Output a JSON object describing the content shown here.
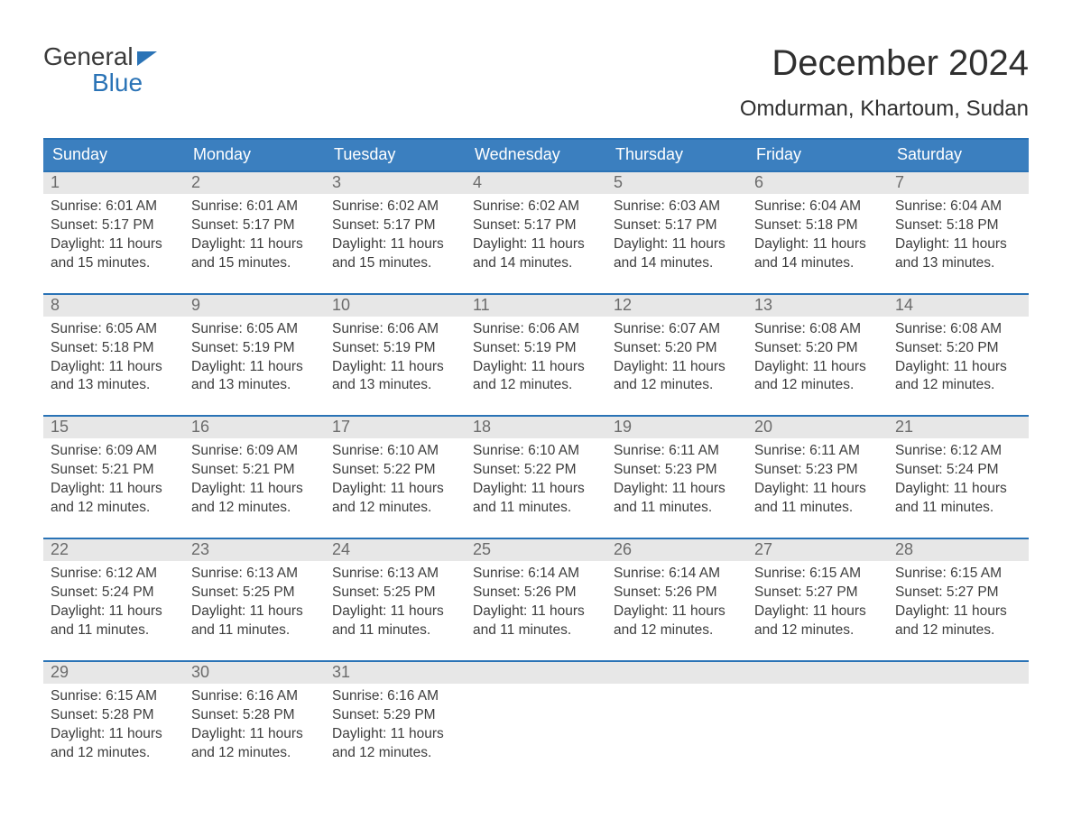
{
  "brand": {
    "line1": "General",
    "line2": "Blue",
    "accent_color": "#2a73b6"
  },
  "header": {
    "title": "December 2024",
    "location": "Omdurman, Khartoum, Sudan",
    "title_fontsize": 40,
    "subtitle_fontsize": 24
  },
  "calendar": {
    "type": "table",
    "header_bg": "#3b7fbf",
    "header_fg": "#ffffff",
    "week_separator_color": "#2a73b6",
    "daynum_bg": "#e7e7e7",
    "daynum_fg": "#6b6b6b",
    "body_text_color": "#3d3d3d",
    "body_fontsize": 15.5,
    "days_of_week": [
      "Sunday",
      "Monday",
      "Tuesday",
      "Wednesday",
      "Thursday",
      "Friday",
      "Saturday"
    ],
    "weeks": [
      [
        {
          "n": "1",
          "sunrise": "Sunrise: 6:01 AM",
          "sunset": "Sunset: 5:17 PM",
          "daylight": "Daylight: 11 hours and 15 minutes."
        },
        {
          "n": "2",
          "sunrise": "Sunrise: 6:01 AM",
          "sunset": "Sunset: 5:17 PM",
          "daylight": "Daylight: 11 hours and 15 minutes."
        },
        {
          "n": "3",
          "sunrise": "Sunrise: 6:02 AM",
          "sunset": "Sunset: 5:17 PM",
          "daylight": "Daylight: 11 hours and 15 minutes."
        },
        {
          "n": "4",
          "sunrise": "Sunrise: 6:02 AM",
          "sunset": "Sunset: 5:17 PM",
          "daylight": "Daylight: 11 hours and 14 minutes."
        },
        {
          "n": "5",
          "sunrise": "Sunrise: 6:03 AM",
          "sunset": "Sunset: 5:17 PM",
          "daylight": "Daylight: 11 hours and 14 minutes."
        },
        {
          "n": "6",
          "sunrise": "Sunrise: 6:04 AM",
          "sunset": "Sunset: 5:18 PM",
          "daylight": "Daylight: 11 hours and 14 minutes."
        },
        {
          "n": "7",
          "sunrise": "Sunrise: 6:04 AM",
          "sunset": "Sunset: 5:18 PM",
          "daylight": "Daylight: 11 hours and 13 minutes."
        }
      ],
      [
        {
          "n": "8",
          "sunrise": "Sunrise: 6:05 AM",
          "sunset": "Sunset: 5:18 PM",
          "daylight": "Daylight: 11 hours and 13 minutes."
        },
        {
          "n": "9",
          "sunrise": "Sunrise: 6:05 AM",
          "sunset": "Sunset: 5:19 PM",
          "daylight": "Daylight: 11 hours and 13 minutes."
        },
        {
          "n": "10",
          "sunrise": "Sunrise: 6:06 AM",
          "sunset": "Sunset: 5:19 PM",
          "daylight": "Daylight: 11 hours and 13 minutes."
        },
        {
          "n": "11",
          "sunrise": "Sunrise: 6:06 AM",
          "sunset": "Sunset: 5:19 PM",
          "daylight": "Daylight: 11 hours and 12 minutes."
        },
        {
          "n": "12",
          "sunrise": "Sunrise: 6:07 AM",
          "sunset": "Sunset: 5:20 PM",
          "daylight": "Daylight: 11 hours and 12 minutes."
        },
        {
          "n": "13",
          "sunrise": "Sunrise: 6:08 AM",
          "sunset": "Sunset: 5:20 PM",
          "daylight": "Daylight: 11 hours and 12 minutes."
        },
        {
          "n": "14",
          "sunrise": "Sunrise: 6:08 AM",
          "sunset": "Sunset: 5:20 PM",
          "daylight": "Daylight: 11 hours and 12 minutes."
        }
      ],
      [
        {
          "n": "15",
          "sunrise": "Sunrise: 6:09 AM",
          "sunset": "Sunset: 5:21 PM",
          "daylight": "Daylight: 11 hours and 12 minutes."
        },
        {
          "n": "16",
          "sunrise": "Sunrise: 6:09 AM",
          "sunset": "Sunset: 5:21 PM",
          "daylight": "Daylight: 11 hours and 12 minutes."
        },
        {
          "n": "17",
          "sunrise": "Sunrise: 6:10 AM",
          "sunset": "Sunset: 5:22 PM",
          "daylight": "Daylight: 11 hours and 12 minutes."
        },
        {
          "n": "18",
          "sunrise": "Sunrise: 6:10 AM",
          "sunset": "Sunset: 5:22 PM",
          "daylight": "Daylight: 11 hours and 11 minutes."
        },
        {
          "n": "19",
          "sunrise": "Sunrise: 6:11 AM",
          "sunset": "Sunset: 5:23 PM",
          "daylight": "Daylight: 11 hours and 11 minutes."
        },
        {
          "n": "20",
          "sunrise": "Sunrise: 6:11 AM",
          "sunset": "Sunset: 5:23 PM",
          "daylight": "Daylight: 11 hours and 11 minutes."
        },
        {
          "n": "21",
          "sunrise": "Sunrise: 6:12 AM",
          "sunset": "Sunset: 5:24 PM",
          "daylight": "Daylight: 11 hours and 11 minutes."
        }
      ],
      [
        {
          "n": "22",
          "sunrise": "Sunrise: 6:12 AM",
          "sunset": "Sunset: 5:24 PM",
          "daylight": "Daylight: 11 hours and 11 minutes."
        },
        {
          "n": "23",
          "sunrise": "Sunrise: 6:13 AM",
          "sunset": "Sunset: 5:25 PM",
          "daylight": "Daylight: 11 hours and 11 minutes."
        },
        {
          "n": "24",
          "sunrise": "Sunrise: 6:13 AM",
          "sunset": "Sunset: 5:25 PM",
          "daylight": "Daylight: 11 hours and 11 minutes."
        },
        {
          "n": "25",
          "sunrise": "Sunrise: 6:14 AM",
          "sunset": "Sunset: 5:26 PM",
          "daylight": "Daylight: 11 hours and 11 minutes."
        },
        {
          "n": "26",
          "sunrise": "Sunrise: 6:14 AM",
          "sunset": "Sunset: 5:26 PM",
          "daylight": "Daylight: 11 hours and 12 minutes."
        },
        {
          "n": "27",
          "sunrise": "Sunrise: 6:15 AM",
          "sunset": "Sunset: 5:27 PM",
          "daylight": "Daylight: 11 hours and 12 minutes."
        },
        {
          "n": "28",
          "sunrise": "Sunrise: 6:15 AM",
          "sunset": "Sunset: 5:27 PM",
          "daylight": "Daylight: 11 hours and 12 minutes."
        }
      ],
      [
        {
          "n": "29",
          "sunrise": "Sunrise: 6:15 AM",
          "sunset": "Sunset: 5:28 PM",
          "daylight": "Daylight: 11 hours and 12 minutes."
        },
        {
          "n": "30",
          "sunrise": "Sunrise: 6:16 AM",
          "sunset": "Sunset: 5:28 PM",
          "daylight": "Daylight: 11 hours and 12 minutes."
        },
        {
          "n": "31",
          "sunrise": "Sunrise: 6:16 AM",
          "sunset": "Sunset: 5:29 PM",
          "daylight": "Daylight: 11 hours and 12 minutes."
        },
        {
          "empty": true
        },
        {
          "empty": true
        },
        {
          "empty": true
        },
        {
          "empty": true
        }
      ]
    ]
  }
}
